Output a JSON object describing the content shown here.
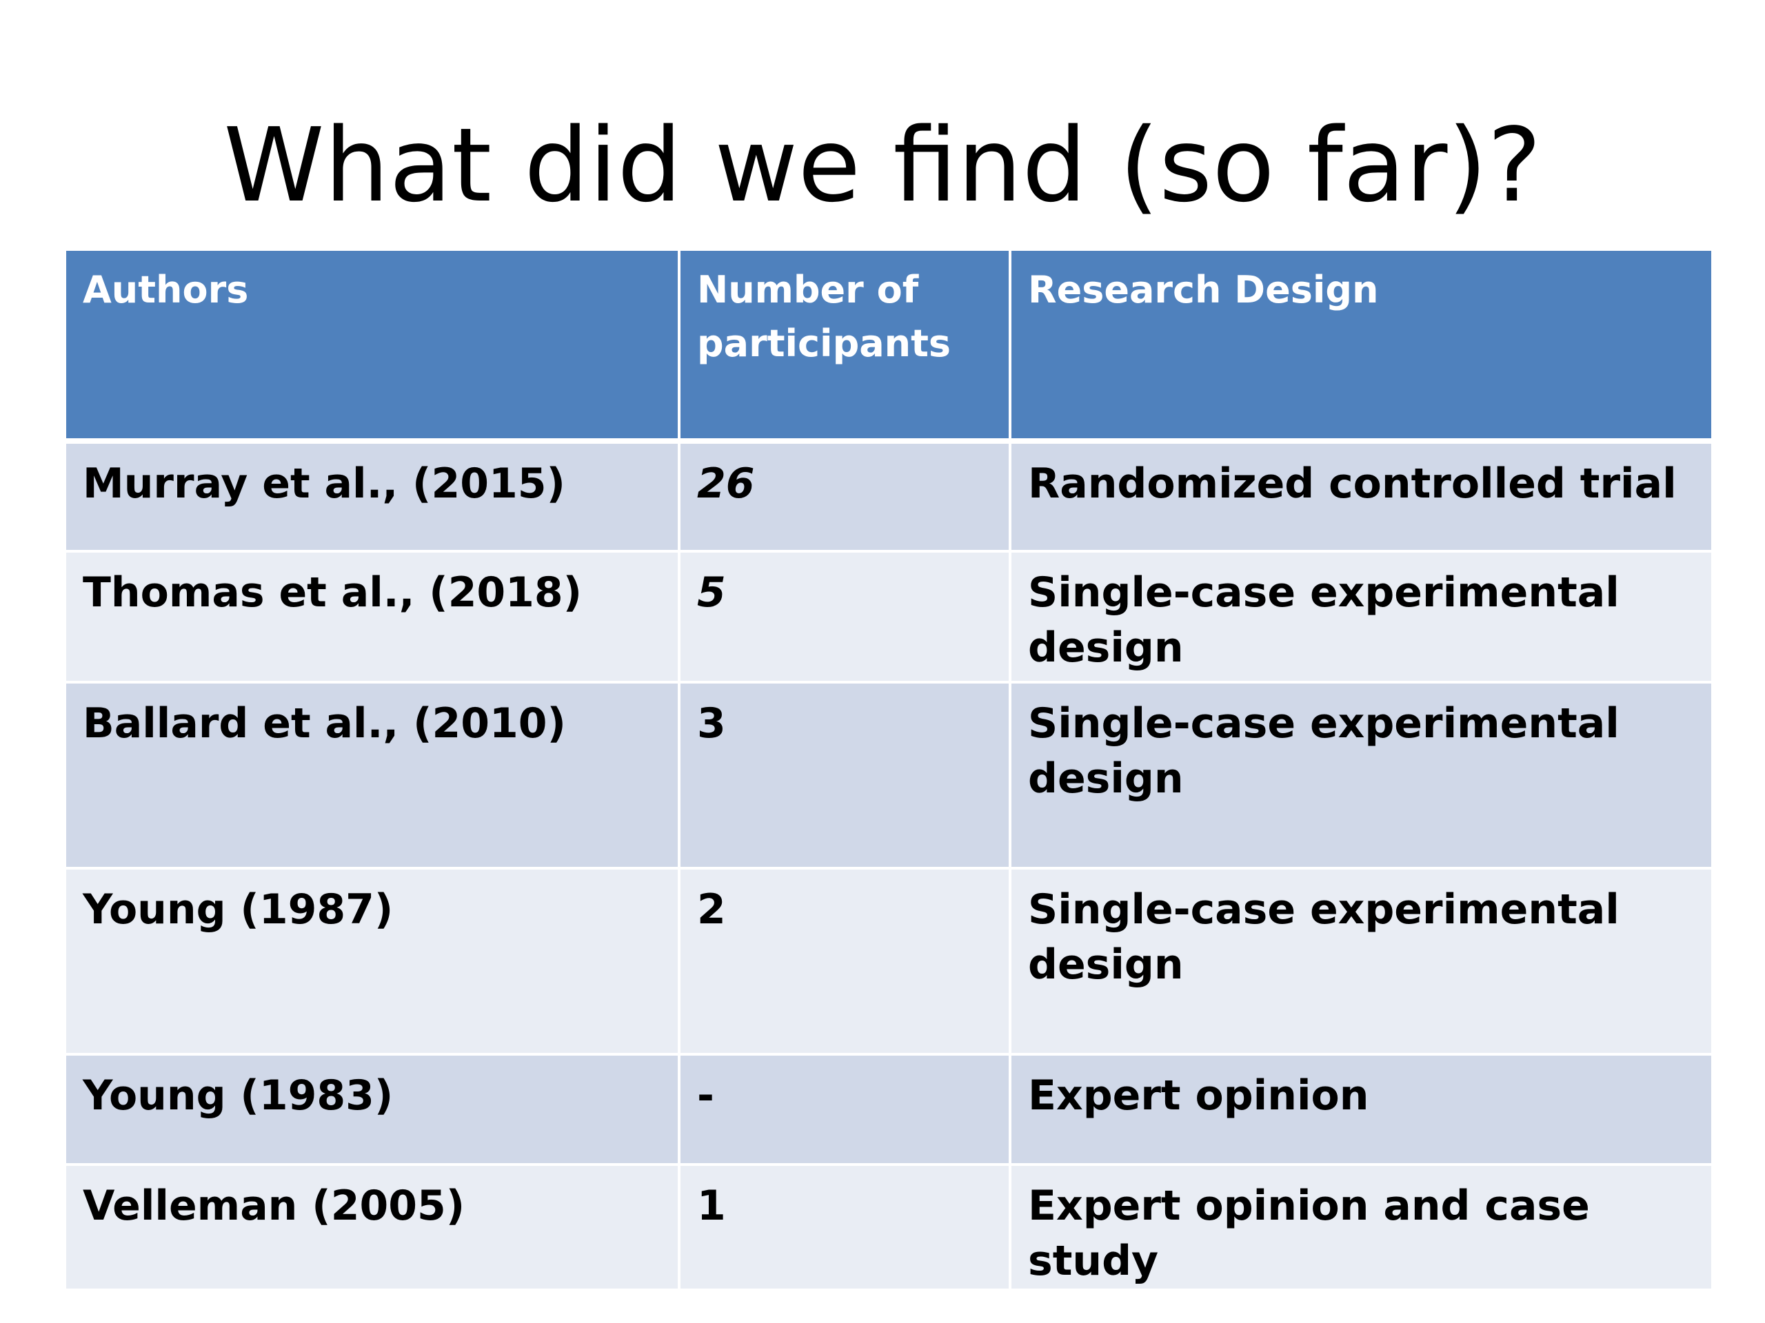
{
  "slide": {
    "title": "What did we find (so far)?"
  },
  "table": {
    "headers": [
      "Authors",
      "Number of participants",
      "Research Design"
    ],
    "header_participants_line1": "Number of",
    "header_participants_line2": "participants",
    "rows": [
      {
        "authors": "Murray et al., (2015)",
        "participants": "26",
        "design": "Randomized controlled trial",
        "participants_italic": true
      },
      {
        "authors": "Thomas et al., (2018)",
        "participants": "5",
        "design": "Single-case experimental design",
        "participants_italic": true
      },
      {
        "authors": "Ballard et al., (2010)",
        "participants": "3",
        "design": "Single-case experimental design",
        "participants_italic": false
      },
      {
        "authors": "Young (1987)",
        "participants": "2",
        "design": "Single-case experimental design",
        "participants_italic": false
      },
      {
        "authors": "Young (1983)",
        "participants": "-",
        "design": "Expert opinion",
        "participants_italic": false
      },
      {
        "authors": "Velleman (2005)",
        "participants": "1",
        "design": "Expert opinion and case study",
        "participants_italic": false
      }
    ]
  },
  "colors": {
    "header_bg": "#4f81bd",
    "row_odd_bg": "#d0d8e8",
    "row_even_bg": "#e9edf4",
    "header_text": "#ffffff",
    "body_text": "#000000"
  }
}
